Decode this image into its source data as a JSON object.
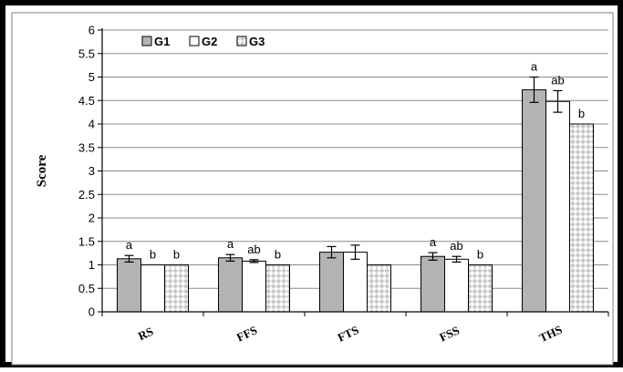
{
  "chart_data": {
    "type": "bar",
    "title": "",
    "xlabel": "",
    "ylabel": "Score",
    "ylim": [
      0,
      6
    ],
    "ytick_step": 0.5,
    "yticks": [
      "0",
      "0.5",
      "1",
      "1.5",
      "2",
      "2.5",
      "3",
      "3.5",
      "4",
      "4.5",
      "5",
      "5.5",
      "6"
    ],
    "grid": true,
    "legend_position": "top-left",
    "categories": [
      "RS",
      "FFS",
      "FTS",
      "FSS",
      "THS"
    ],
    "series": [
      {
        "name": "G1",
        "fill": "gray",
        "color": "#b3b3b3",
        "values": [
          1.13,
          1.15,
          1.27,
          1.18,
          4.73
        ],
        "errors": [
          0.07,
          0.07,
          0.12,
          0.08,
          0.27
        ],
        "labels": [
          "a",
          "a",
          "",
          "a",
          "a"
        ]
      },
      {
        "name": "G2",
        "fill": "white",
        "color": "#ffffff",
        "values": [
          1.0,
          1.08,
          1.27,
          1.12,
          4.48
        ],
        "errors": [
          0.0,
          0.03,
          0.15,
          0.06,
          0.23
        ],
        "labels": [
          "b",
          "ab",
          "",
          "ab",
          "ab"
        ]
      },
      {
        "name": "G3",
        "fill": "checker",
        "color": "#cfcfcf",
        "values": [
          1.0,
          1.0,
          1.0,
          1.0,
          4.0
        ],
        "errors": [
          0,
          0,
          0,
          0,
          0
        ],
        "labels": [
          "b",
          "b",
          "",
          "b",
          "b"
        ]
      }
    ]
  }
}
